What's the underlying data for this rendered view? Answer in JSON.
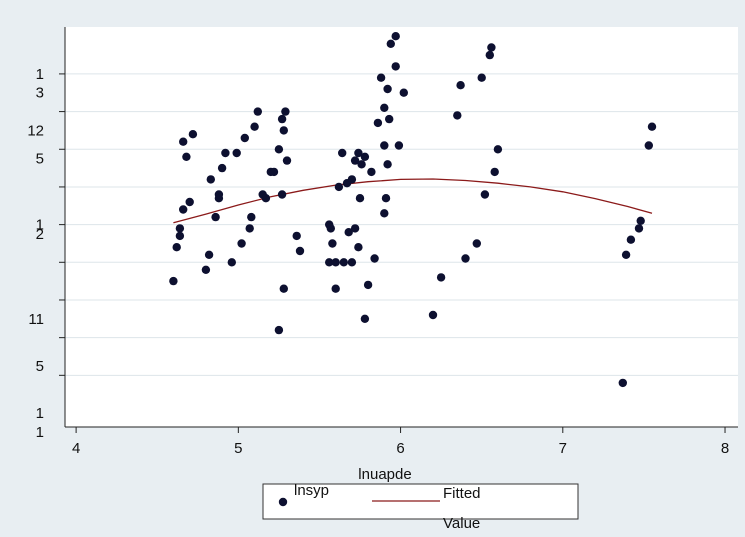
{
  "chart_data": {
    "type": "scatter",
    "xlabel": "lnuapde",
    "ylabel": "",
    "xlim": [
      4,
      8
    ],
    "xticks": [
      4,
      5,
      6,
      7,
      8
    ],
    "ylim": [
      0,
      9.9
    ],
    "y_tick_values": [
      1,
      2,
      3,
      4,
      5,
      6,
      7,
      8,
      9
    ],
    "y_tick_labels": [
      "1",
      "1",
      "5",
      "11",
      "2",
      "1",
      "5",
      "12",
      "3",
      "1"
    ],
    "y_tick_label_values": [
      -0.5,
      0,
      1.25,
      2.5,
      4.75,
      5,
      6.75,
      7.5,
      8.5,
      9
    ],
    "grid": true,
    "legend_position": "bottom",
    "colors": {
      "points": "#0d1030",
      "fitted": "#8b1a1a",
      "plot_bg": "#ffffff",
      "page_bg": "#e8eef2",
      "grid": "#dde5ea"
    },
    "series": [
      {
        "name": "lnsyp",
        "kind": "scatter",
        "x": [
          4.6,
          4.62,
          4.64,
          4.66,
          4.68,
          4.66,
          4.7,
          4.72,
          4.64,
          4.8,
          4.82,
          4.83,
          4.86,
          4.88,
          4.88,
          4.9,
          4.92,
          4.96,
          4.99,
          5.02,
          5.04,
          5.07,
          5.08,
          5.1,
          5.12,
          5.15,
          5.17,
          5.2,
          5.22,
          5.25,
          5.27,
          5.27,
          5.28,
          5.28,
          5.29,
          5.3,
          5.25,
          5.38,
          5.36,
          5.56,
          5.57,
          5.58,
          5.56,
          5.6,
          5.6,
          5.62,
          5.64,
          5.65,
          5.67,
          5.68,
          5.7,
          5.7,
          5.72,
          5.72,
          5.74,
          5.74,
          5.75,
          5.76,
          5.78,
          5.8,
          5.78,
          5.82,
          5.84,
          5.86,
          5.88,
          5.9,
          5.9,
          5.91,
          5.92,
          5.92,
          5.93,
          5.94,
          5.97,
          5.97,
          5.99,
          6.02,
          5.9,
          6.2,
          6.25,
          6.35,
          6.37,
          6.4,
          6.47,
          6.5,
          6.52,
          6.55,
          6.56,
          6.58,
          6.6,
          7.37,
          7.39,
          7.42,
          7.47,
          7.48,
          7.53,
          7.55
        ],
        "y": [
          3.5,
          4.4,
          4.7,
          5.4,
          6.8,
          7.2,
          5.6,
          7.4,
          4.9,
          3.8,
          4.2,
          6.2,
          5.2,
          5.7,
          5.8,
          6.5,
          6.9,
          4.0,
          6.9,
          4.5,
          7.3,
          4.9,
          5.2,
          7.6,
          8.0,
          5.8,
          5.7,
          6.4,
          6.4,
          7.0,
          7.8,
          5.8,
          7.5,
          3.3,
          8.0,
          6.7,
          2.2,
          4.3,
          4.7,
          4.0,
          4.9,
          4.5,
          5.0,
          4.0,
          3.3,
          6.0,
          6.9,
          4.0,
          6.1,
          4.8,
          6.2,
          4.0,
          6.7,
          4.9,
          4.4,
          6.9,
          5.7,
          6.6,
          2.5,
          3.4,
          6.8,
          6.4,
          4.1,
          7.7,
          8.9,
          8.1,
          7.1,
          5.7,
          8.6,
          6.6,
          7.8,
          9.8,
          9.2,
          10.0,
          7.1,
          8.5,
          5.3,
          2.6,
          3.6,
          7.9,
          8.7,
          4.1,
          4.5,
          8.9,
          5.8,
          9.5,
          9.7,
          6.4,
          7.0,
          0.8,
          4.2,
          4.6,
          4.9,
          5.1,
          7.1,
          7.6
        ]
      },
      {
        "name": "Fitted",
        "kind": "line",
        "x": [
          4.6,
          4.8,
          5.0,
          5.2,
          5.4,
          5.6,
          5.8,
          6.0,
          6.2,
          6.4,
          6.6,
          6.8,
          7.0,
          7.2,
          7.4,
          7.55
        ],
        "y": [
          5.05,
          5.28,
          5.52,
          5.74,
          5.91,
          6.05,
          6.14,
          6.2,
          6.21,
          6.17,
          6.1,
          6.0,
          5.87,
          5.69,
          5.48,
          5.3
        ]
      }
    ],
    "legend": {
      "items": [
        {
          "label": "lnsyp",
          "marker": "dot"
        },
        {
          "label": "Fitted",
          "marker": "line"
        }
      ],
      "extra_label": "Value"
    }
  }
}
